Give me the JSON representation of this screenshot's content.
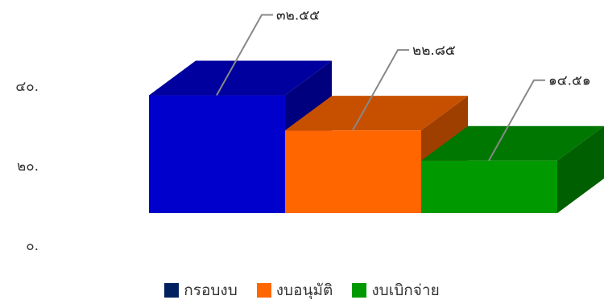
{
  "chart_data": {
    "type": "bar",
    "categories": [
      "กรอบงบ",
      "งบอนุมัติ",
      "งบเบิกจ่าย"
    ],
    "values": [
      32.55,
      22.85,
      14.51
    ],
    "value_labels": [
      "๓๒.๕๕",
      "๒๒.๘๕",
      "๑๔.๕๑"
    ],
    "ylim": [
      0,
      40
    ],
    "y_ticks": [
      "๐.",
      "๒๐.",
      "๔๐."
    ],
    "colors": {
      "กรอบงบ": "#0000cc",
      "งบอนุมัติ": "#ff6600",
      "งบเบิกจ่าย": "#009900"
    },
    "legend_colors": [
      "#002060",
      "#ff6600",
      "#009900"
    ],
    "legend_position": "bottom-center",
    "grid": false,
    "style": "3d"
  },
  "legend": {
    "items": [
      {
        "label": "กรอบงบ",
        "color": "#002060"
      },
      {
        "label": "งบอนุมัติ",
        "color": "#ff6600"
      },
      {
        "label": "งบเบิกจ่าย",
        "color": "#009900"
      }
    ]
  }
}
